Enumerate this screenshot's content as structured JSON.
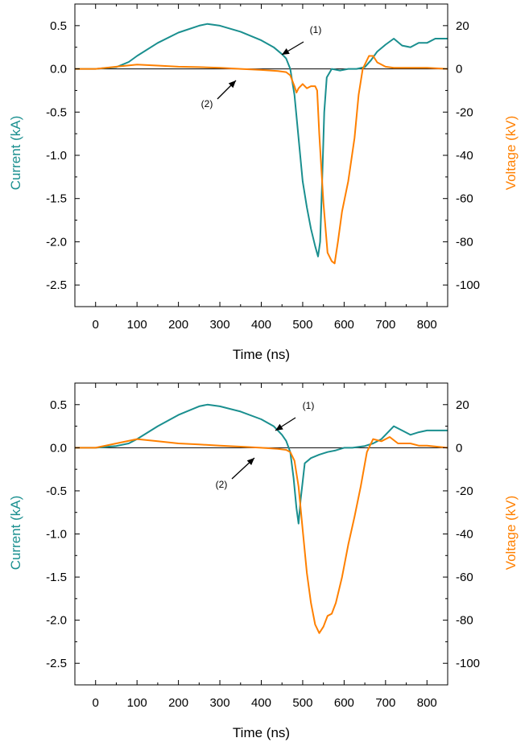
{
  "chart_data": [
    {
      "type": "line",
      "panel": "top",
      "xlabel": "Time (ns)",
      "ylabel_left": "Current (kA)",
      "ylabel_right": "Voltage (kV)",
      "xlim": [
        -50,
        850
      ],
      "ylim_left": [
        -2.75,
        0.75
      ],
      "ylim_right": [
        -110,
        30
      ],
      "x_ticks": [
        0,
        100,
        200,
        300,
        400,
        500,
        600,
        700,
        800
      ],
      "y_ticks_left": [
        0.5,
        0.0,
        -0.5,
        -1.0,
        -1.5,
        -2.0,
        -2.5
      ],
      "y_tick_labels_left": [
        "0.5",
        "0.0",
        "-0.5",
        "-1.0",
        "-1.5",
        "-2.0",
        "-2.5"
      ],
      "y_ticks_right": [
        20,
        0,
        -20,
        -40,
        -60,
        -80,
        -100
      ],
      "y_tick_labels_right": [
        "20",
        "0",
        "-20",
        "-40",
        "-60",
        "-80",
        "-100"
      ],
      "grid": false,
      "annotations": [
        {
          "label": "(1)",
          "series": "current"
        },
        {
          "label": "(2)",
          "series": "voltage"
        }
      ],
      "series": [
        {
          "key": "current",
          "axis": "left",
          "color": "#1a8f8f",
          "x": [
            -50,
            0,
            50,
            80,
            100,
            150,
            200,
            250,
            270,
            300,
            350,
            400,
            430,
            450,
            460,
            470,
            480,
            490,
            500,
            510,
            520,
            530,
            537,
            542,
            547,
            552,
            558,
            570,
            590,
            610,
            630,
            650,
            665,
            680,
            700,
            720,
            740,
            760,
            780,
            800,
            820,
            850
          ],
          "y": [
            0.0,
            0.0,
            0.02,
            0.08,
            0.15,
            0.3,
            0.42,
            0.5,
            0.52,
            0.5,
            0.43,
            0.33,
            0.25,
            0.17,
            0.12,
            0.0,
            -0.3,
            -0.8,
            -1.3,
            -1.6,
            -1.85,
            -2.05,
            -2.17,
            -2.0,
            -1.3,
            -0.5,
            -0.1,
            0.0,
            -0.02,
            0.0,
            0.0,
            0.02,
            0.1,
            0.2,
            0.28,
            0.35,
            0.27,
            0.25,
            0.3,
            0.3,
            0.35,
            0.35
          ]
        },
        {
          "key": "voltage",
          "axis": "right",
          "color": "#ff8000",
          "x": [
            -50,
            0,
            50,
            100,
            150,
            200,
            250,
            300,
            350,
            400,
            440,
            460,
            470,
            480,
            485,
            490,
            500,
            510,
            520,
            530,
            535,
            540,
            550,
            560,
            570,
            577,
            585,
            595,
            610,
            625,
            635,
            645,
            660,
            670,
            680,
            700,
            720,
            750,
            780,
            800,
            850
          ],
          "y": [
            0.0,
            0.0,
            1.0,
            2.0,
            1.5,
            1.0,
            0.8,
            0.5,
            0.0,
            -0.5,
            -1.0,
            -1.5,
            -3.0,
            -8.0,
            -11.0,
            -9.0,
            -7.0,
            -9.0,
            -8.0,
            -8.0,
            -10.0,
            -30.0,
            -62.0,
            -85.0,
            -89.0,
            -90.0,
            -80.0,
            -66.0,
            -52.0,
            -32.0,
            -12.0,
            0.0,
            6.0,
            6.0,
            3.0,
            1.0,
            0.5,
            0.5,
            0.5,
            0.5,
            0.0
          ]
        }
      ]
    },
    {
      "type": "line",
      "panel": "bottom",
      "xlabel": "Time (ns)",
      "ylabel_left": "Current (kA)",
      "ylabel_right": "Voltage (kV)",
      "xlim": [
        -50,
        850
      ],
      "ylim_left": [
        -2.75,
        0.75
      ],
      "ylim_right": [
        -110,
        30
      ],
      "x_ticks": [
        0,
        100,
        200,
        300,
        400,
        500,
        600,
        700,
        800
      ],
      "y_ticks_left": [
        0.5,
        0.0,
        -0.5,
        -1.0,
        -1.5,
        -2.0,
        -2.5
      ],
      "y_tick_labels_left": [
        "0.5",
        "0.0",
        "-0.5",
        "-1.0",
        "-1.5",
        "-2.0",
        "-2.5"
      ],
      "y_ticks_right": [
        20,
        0,
        -20,
        -40,
        -60,
        -80,
        -100
      ],
      "y_tick_labels_right": [
        "20",
        "0",
        "-20",
        "-40",
        "-60",
        "-80",
        "-100"
      ],
      "grid": false,
      "annotations": [
        {
          "label": "(1)",
          "series": "current"
        },
        {
          "label": "(2)",
          "series": "voltage"
        }
      ],
      "series": [
        {
          "key": "current",
          "axis": "left",
          "color": "#1a8f8f",
          "x": [
            -50,
            0,
            50,
            80,
            100,
            150,
            200,
            250,
            270,
            300,
            350,
            400,
            430,
            450,
            460,
            470,
            478,
            485,
            490,
            495,
            505,
            520,
            540,
            560,
            580,
            600,
            620,
            650,
            670,
            690,
            700,
            720,
            740,
            760,
            780,
            800,
            820,
            850
          ],
          "y": [
            0.0,
            0.0,
            0.02,
            0.05,
            0.1,
            0.25,
            0.38,
            0.48,
            0.5,
            0.48,
            0.42,
            0.33,
            0.25,
            0.15,
            0.08,
            -0.05,
            -0.35,
            -0.7,
            -0.88,
            -0.6,
            -0.18,
            -0.12,
            -0.08,
            -0.05,
            -0.03,
            0.0,
            0.0,
            0.02,
            0.05,
            0.1,
            0.15,
            0.25,
            0.2,
            0.15,
            0.18,
            0.2,
            0.2,
            0.2
          ]
        },
        {
          "key": "voltage",
          "axis": "right",
          "color": "#ff8000",
          "x": [
            -50,
            0,
            50,
            100,
            150,
            200,
            250,
            300,
            350,
            400,
            440,
            460,
            470,
            480,
            490,
            500,
            510,
            520,
            530,
            540,
            550,
            560,
            570,
            580,
            595,
            610,
            625,
            640,
            655,
            670,
            690,
            710,
            730,
            760,
            780,
            800,
            850
          ],
          "y": [
            0.0,
            0.0,
            2.0,
            4.0,
            3.0,
            2.0,
            1.5,
            1.0,
            0.5,
            0.0,
            -0.5,
            -1.0,
            -2.0,
            -6.0,
            -18.0,
            -38.0,
            -58.0,
            -72.0,
            -82.0,
            -86.0,
            -83.0,
            -78.0,
            -77.0,
            -72.0,
            -60.0,
            -45.0,
            -32.0,
            -18.0,
            -2.0,
            4.0,
            3.0,
            5.0,
            2.0,
            2.0,
            1.0,
            1.0,
            0.0
          ]
        }
      ]
    }
  ]
}
